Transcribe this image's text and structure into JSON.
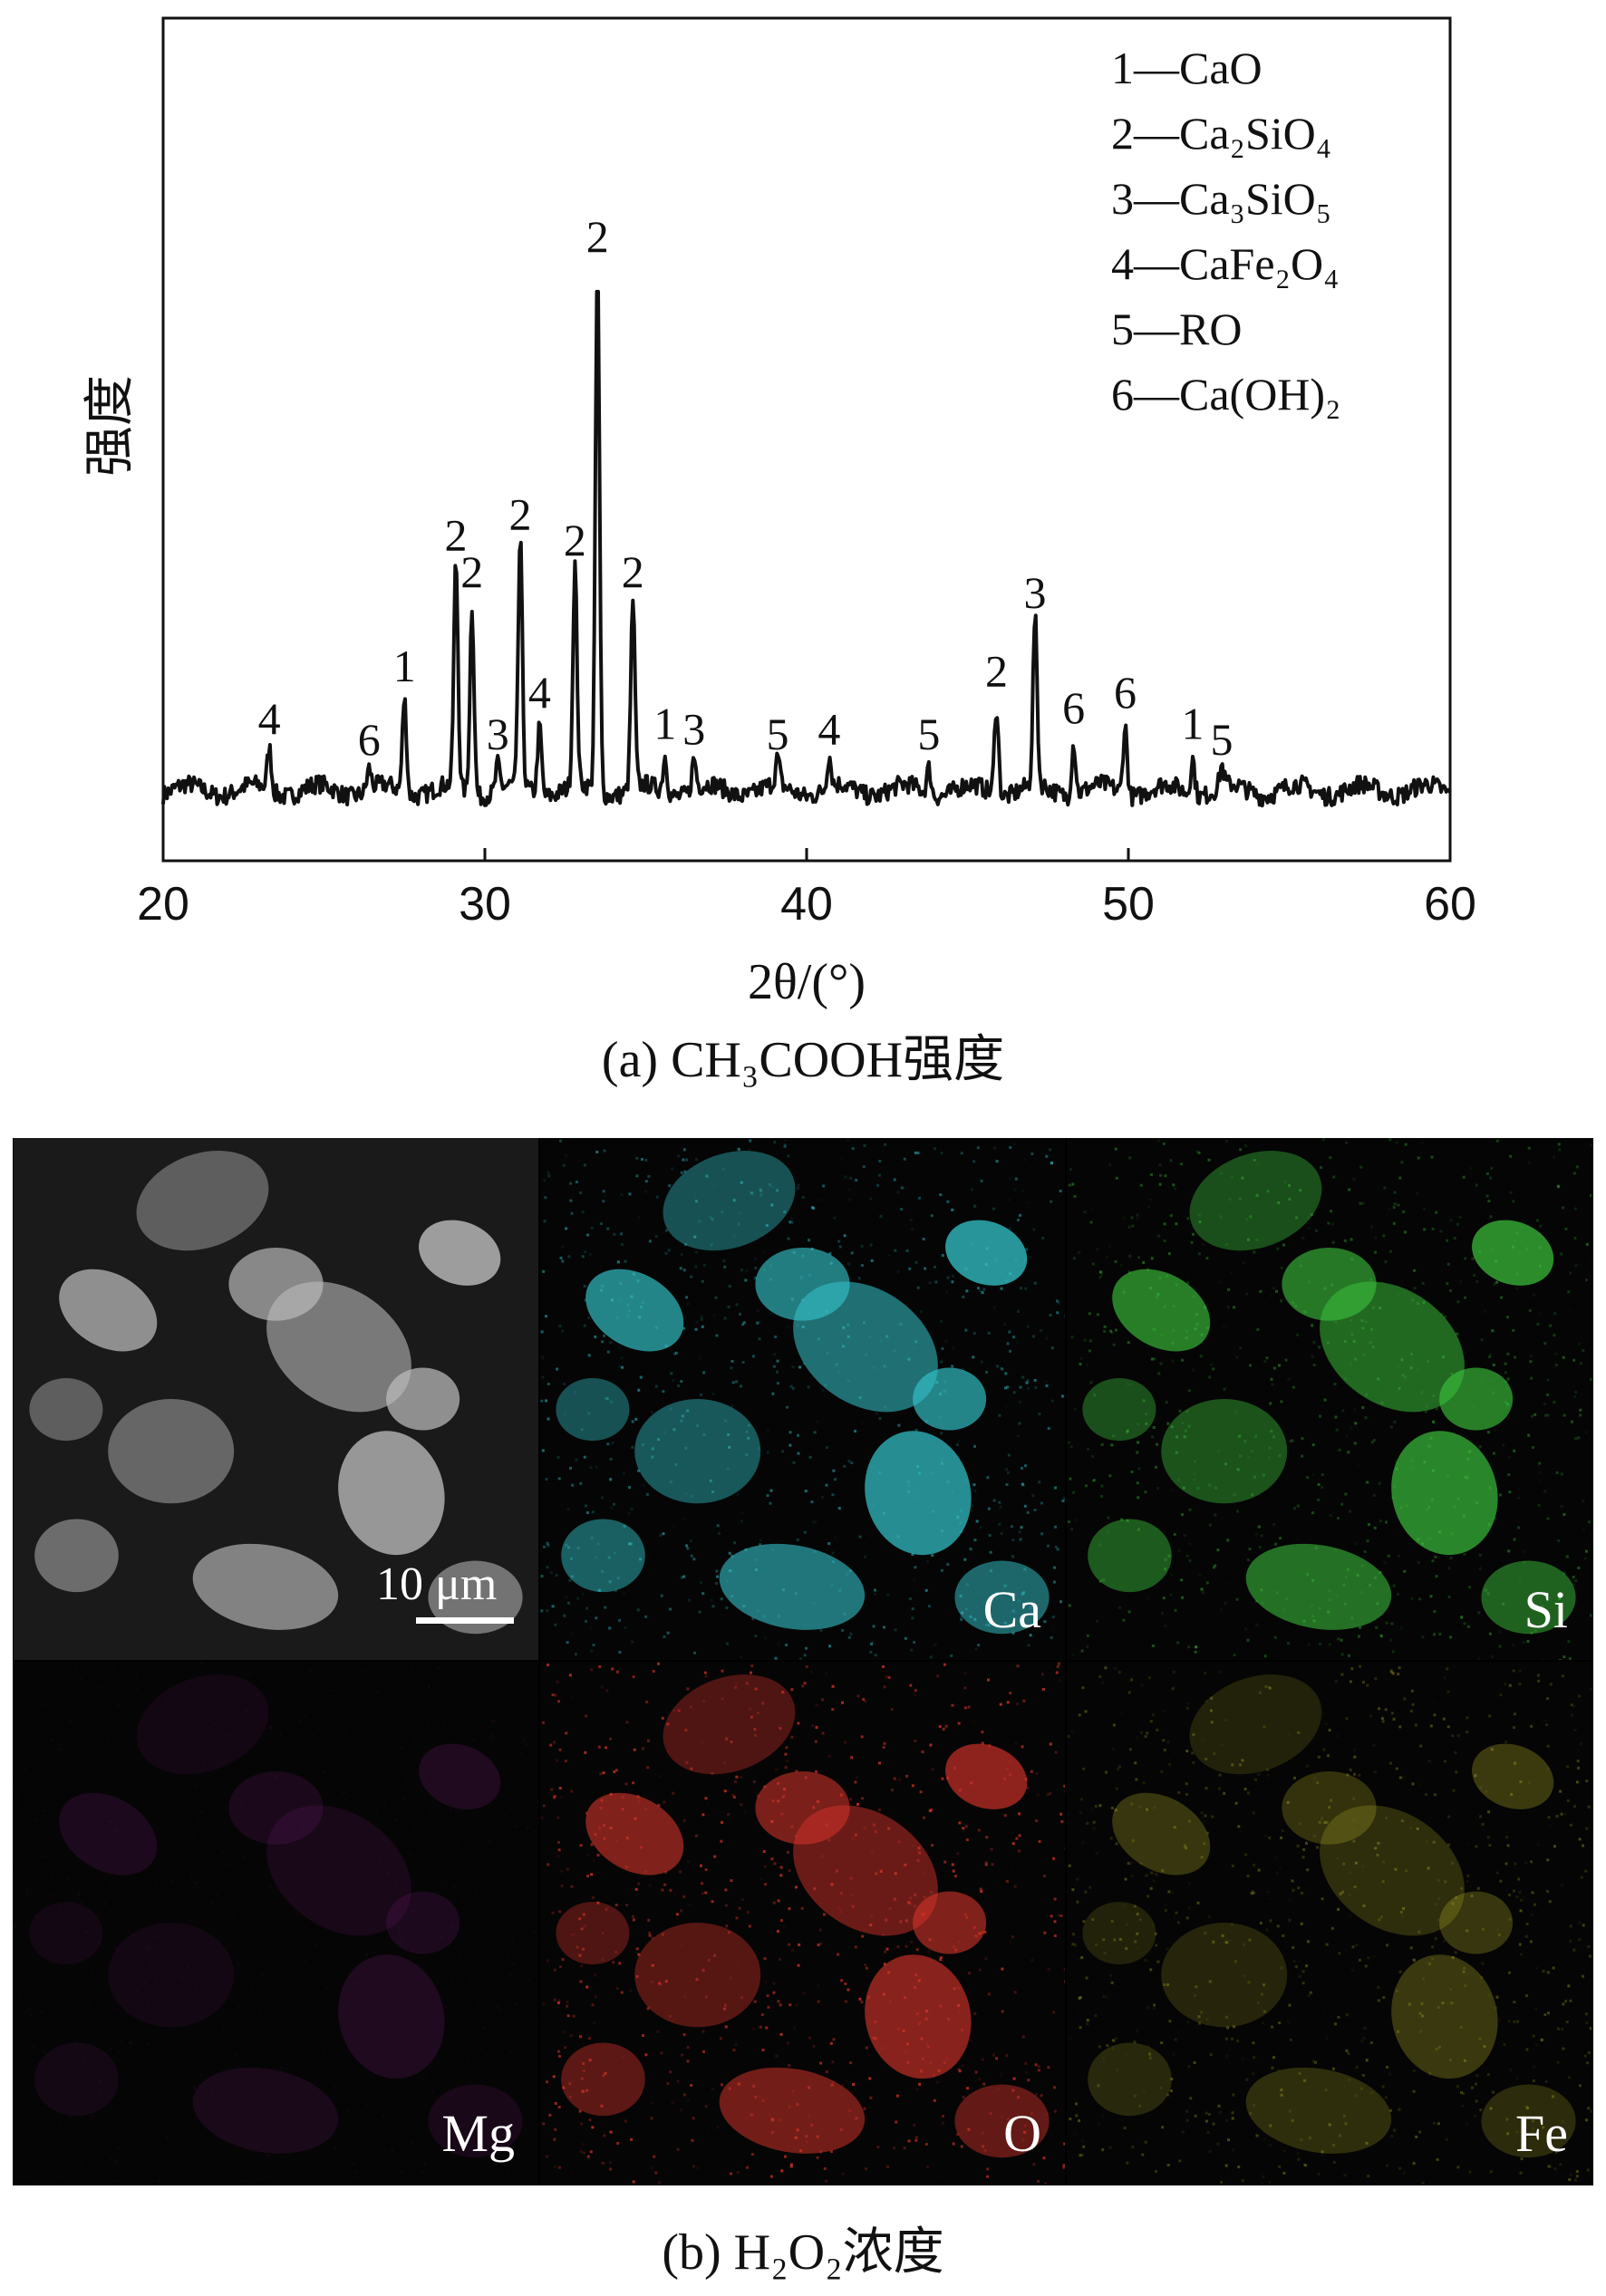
{
  "figure_a": {
    "caption": "(a) CH₃COOH强度",
    "chart_data": {
      "type": "line",
      "title": "",
      "xlabel": "2θ/(°)",
      "ylabel": "强度",
      "xlim": [
        20,
        60
      ],
      "xticks": [
        20,
        30,
        40,
        50,
        60
      ],
      "y_ticks_shown": false,
      "grid": false,
      "legend_position": "top-right",
      "legend": [
        {
          "key": "1",
          "text": "1—CaO"
        },
        {
          "key": "2",
          "text": "2—Ca₂SiO₄"
        },
        {
          "key": "3",
          "text": "3—Ca₃SiO₅"
        },
        {
          "key": "4",
          "text": "4—CaFe₂O₄"
        },
        {
          "key": "5",
          "text": "5—RO"
        },
        {
          "key": "6",
          "text": "6—Ca(OH)₂"
        }
      ],
      "peaks": [
        {
          "x": 23.3,
          "y": 0.08,
          "label": "4"
        },
        {
          "x": 26.4,
          "y": 0.04,
          "label": "6"
        },
        {
          "x": 27.5,
          "y": 0.18,
          "label": "1"
        },
        {
          "x": 29.1,
          "y": 0.43,
          "label": "2"
        },
        {
          "x": 29.6,
          "y": 0.36,
          "label": "2"
        },
        {
          "x": 30.4,
          "y": 0.05,
          "label": "3"
        },
        {
          "x": 31.1,
          "y": 0.47,
          "label": "2"
        },
        {
          "x": 31.7,
          "y": 0.13,
          "label": "4"
        },
        {
          "x": 32.8,
          "y": 0.42,
          "label": "2"
        },
        {
          "x": 33.5,
          "y": 1.0,
          "label": "2"
        },
        {
          "x": 34.6,
          "y": 0.36,
          "label": "2"
        },
        {
          "x": 35.6,
          "y": 0.07,
          "label": "1"
        },
        {
          "x": 36.5,
          "y": 0.06,
          "label": "3"
        },
        {
          "x": 39.1,
          "y": 0.05,
          "label": "5"
        },
        {
          "x": 40.7,
          "y": 0.06,
          "label": "4"
        },
        {
          "x": 43.8,
          "y": 0.05,
          "label": "5"
        },
        {
          "x": 45.9,
          "y": 0.17,
          "label": "2"
        },
        {
          "x": 47.1,
          "y": 0.32,
          "label": "3"
        },
        {
          "x": 48.3,
          "y": 0.1,
          "label": "6"
        },
        {
          "x": 49.9,
          "y": 0.13,
          "label": "6"
        },
        {
          "x": 52.0,
          "y": 0.07,
          "label": "1"
        },
        {
          "x": 52.9,
          "y": 0.04,
          "label": "5"
        }
      ]
    }
  },
  "figure_b": {
    "caption": "(b) H₂O₂浓度",
    "scale_bar": "10 μm",
    "tiles": [
      {
        "id": "sem",
        "label": "",
        "color": "#bdbdbd"
      },
      {
        "id": "ca",
        "label": "Ca",
        "color": "#33c2c9"
      },
      {
        "id": "si",
        "label": "Si",
        "color": "#3cc43c"
      },
      {
        "id": "mg",
        "label": "Mg",
        "color": "#c02ac0"
      },
      {
        "id": "o",
        "label": "O",
        "color": "#d6342a"
      },
      {
        "id": "fe",
        "label": "Fe",
        "color": "#c9c52a"
      }
    ]
  }
}
